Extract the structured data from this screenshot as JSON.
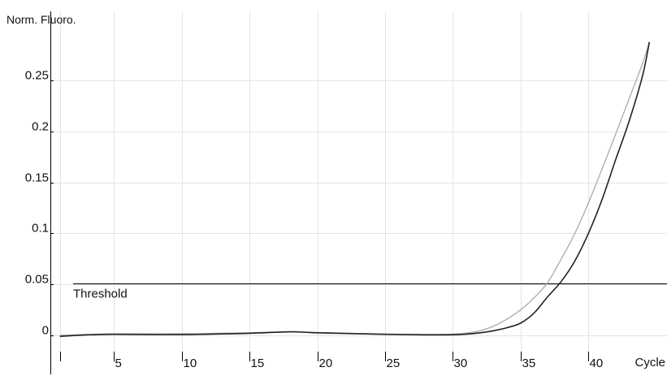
{
  "chart_data": {
    "type": "line",
    "ylabel": "Norm. Fluoro.",
    "xlabel": "Cycle",
    "x_ticks": [
      1,
      5,
      10,
      15,
      20,
      25,
      30,
      35,
      40
    ],
    "x_tick_labels": [
      "",
      "5",
      "10",
      "15",
      "20",
      "25",
      "30",
      "35",
      "40"
    ],
    "y_ticks": [
      0,
      0.05,
      0.1,
      0.15,
      0.2,
      0.25
    ],
    "y_tick_labels": [
      "0",
      "0.05",
      "0.1",
      "0.15",
      "0.2",
      "0.25"
    ],
    "xlim": [
      0.3,
      45.8
    ],
    "ylim": [
      -0.016,
      0.318
    ],
    "grid": true,
    "threshold": {
      "label": "Threshold",
      "value": 0.051
    },
    "series": [
      {
        "color": "#aaaaaa",
        "points": [
          [
            1,
            0.0
          ],
          [
            3,
            0.0008
          ],
          [
            5,
            0.0015
          ],
          [
            10,
            0.0015
          ],
          [
            15,
            0.0025
          ],
          [
            18,
            0.0035
          ],
          [
            20,
            0.0028
          ],
          [
            25,
            0.0012
          ],
          [
            28,
            0.0008
          ],
          [
            30,
            0.0012
          ],
          [
            31,
            0.0022
          ],
          [
            32,
            0.0045
          ],
          [
            33,
            0.009
          ],
          [
            34,
            0.016
          ],
          [
            35,
            0.025
          ],
          [
            36,
            0.037
          ],
          [
            37,
            0.052
          ],
          [
            38,
            0.075
          ],
          [
            39,
            0.1
          ],
          [
            40,
            0.13
          ],
          [
            41,
            0.163
          ],
          [
            42,
            0.197
          ],
          [
            43,
            0.232
          ],
          [
            44,
            0.267
          ],
          [
            44.5,
            0.288
          ]
        ]
      },
      {
        "color": "#222222",
        "points": [
          [
            1,
            -0.001
          ],
          [
            3,
            0.0005
          ],
          [
            5,
            0.001
          ],
          [
            10,
            0.0008
          ],
          [
            15,
            0.002
          ],
          [
            18,
            0.0035
          ],
          [
            20,
            0.0025
          ],
          [
            25,
            0.001
          ],
          [
            28,
            0.0005
          ],
          [
            30,
            0.0006
          ],
          [
            31,
            0.0012
          ],
          [
            32,
            0.0025
          ],
          [
            33,
            0.0045
          ],
          [
            34,
            0.0075
          ],
          [
            35,
            0.012
          ],
          [
            36,
            0.022
          ],
          [
            37,
            0.038
          ],
          [
            38,
            0.053
          ],
          [
            39,
            0.073
          ],
          [
            40,
            0.1
          ],
          [
            41,
            0.133
          ],
          [
            42,
            0.172
          ],
          [
            43,
            0.21
          ],
          [
            44,
            0.255
          ],
          [
            44.5,
            0.288
          ]
        ]
      }
    ]
  }
}
